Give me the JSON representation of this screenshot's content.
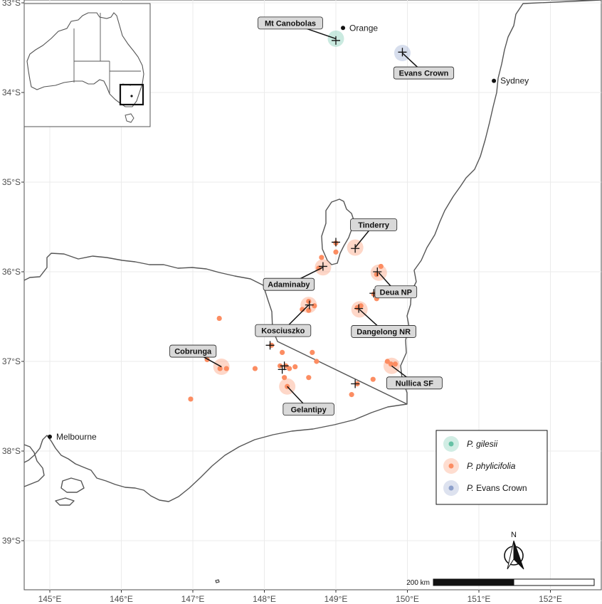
{
  "axes": {
    "lon_ticks": [
      {
        "value": 145,
        "label": "145°E"
      },
      {
        "value": 146,
        "label": "146°E"
      },
      {
        "value": 147,
        "label": "147°E"
      },
      {
        "value": 148,
        "label": "148°E"
      },
      {
        "value": 149,
        "label": "149°E"
      },
      {
        "value": 150,
        "label": "150°E"
      },
      {
        "value": 151,
        "label": "151°E"
      },
      {
        "value": 152,
        "label": "152°E"
      }
    ],
    "lat_ticks": [
      {
        "value": -33,
        "label": "33°S"
      },
      {
        "value": -34,
        "label": "34°S"
      },
      {
        "value": -35,
        "label": "35°S"
      },
      {
        "value": -36,
        "label": "36°S"
      },
      {
        "value": -37,
        "label": "37°S"
      },
      {
        "value": -38,
        "label": "38°S"
      },
      {
        "value": -39,
        "label": "39°S"
      }
    ]
  },
  "colors": {
    "gilesii": "#66c2a5",
    "phylicifolia": "#fc8d62",
    "evans_crown": "#8da0cb",
    "coast": "#555555",
    "grid": "#ebebeb"
  },
  "cities": [
    {
      "name": "Orange",
      "lon": 149.1,
      "lat": -33.28
    },
    {
      "name": "Sydney",
      "lon": 151.21,
      "lat": -33.87
    },
    {
      "name": "Melbourne",
      "lon": 145.0,
      "lat": -37.84
    }
  ],
  "sites": [
    {
      "label": "Mt Canobolas",
      "species": "gilesii",
      "lon": 149.0,
      "lat": -33.4
    },
    {
      "label": "Evans Crown",
      "species": "evans_crown",
      "lon": 149.93,
      "lat": -33.56
    },
    {
      "label": "Tinderry",
      "species": "phylicifolia",
      "lon": 149.27,
      "lat": -35.73
    },
    {
      "label": "Adaminaby",
      "species": "phylicifolia",
      "lon": 148.82,
      "lat": -35.95
    },
    {
      "label": "Deua NP",
      "species": "phylicifolia",
      "lon": 149.6,
      "lat": -36.01
    },
    {
      "label": "Kosciuszko",
      "species": "phylicifolia",
      "lon": 148.62,
      "lat": -36.37
    },
    {
      "label": "Dangelong NR",
      "species": "phylicifolia",
      "lon": 149.33,
      "lat": -36.42
    },
    {
      "label": "Cobrunga",
      "species": "phylicifolia",
      "lon": 147.4,
      "lat": -37.06
    },
    {
      "label": "Nullica SF",
      "species": "phylicifolia",
      "lon": 149.78,
      "lat": -37.05
    },
    {
      "label": "Gelantipy",
      "species": "phylicifolia",
      "lon": 148.32,
      "lat": -37.28
    }
  ],
  "occurrences": [
    [
      149.0,
      -35.68
    ],
    [
      149.0,
      -35.78
    ],
    [
      148.8,
      -35.84
    ],
    [
      148.76,
      -35.96
    ],
    [
      149.63,
      -35.94
    ],
    [
      149.57,
      -36.03
    ],
    [
      149.77,
      -36.2
    ],
    [
      149.53,
      -36.25
    ],
    [
      149.57,
      -36.3
    ],
    [
      148.53,
      -36.42
    ],
    [
      148.62,
      -36.33
    ],
    [
      148.7,
      -36.38
    ],
    [
      148.62,
      -36.43
    ],
    [
      149.35,
      -36.38
    ],
    [
      149.3,
      -36.4
    ],
    [
      147.37,
      -36.52
    ],
    [
      148.1,
      -36.82
    ],
    [
      148.25,
      -36.9
    ],
    [
      148.67,
      -36.9
    ],
    [
      148.62,
      -37.18
    ],
    [
      147.2,
      -36.98
    ],
    [
      147.38,
      -37.08
    ],
    [
      147.47,
      -37.08
    ],
    [
      147.87,
      -37.08
    ],
    [
      148.22,
      -37.05
    ],
    [
      148.3,
      -37.05
    ],
    [
      148.35,
      -37.08
    ],
    [
      148.43,
      -37.06
    ],
    [
      148.73,
      -37.0
    ],
    [
      148.28,
      -37.18
    ],
    [
      149.72,
      -37.0
    ],
    [
      149.77,
      -37.03
    ],
    [
      149.83,
      -37.03
    ],
    [
      149.52,
      -37.2
    ],
    [
      149.22,
      -37.37
    ],
    [
      148.32,
      -37.28
    ],
    [
      146.97,
      -37.42
    ],
    [
      149.3,
      -37.25
    ]
  ],
  "crosses": [
    [
      149.0,
      -33.42
    ],
    [
      149.93,
      -33.55
    ],
    [
      149.27,
      -35.74
    ],
    [
      149.0,
      -35.67
    ],
    [
      148.82,
      -35.94
    ],
    [
      149.58,
      -36.0
    ],
    [
      149.53,
      -36.24
    ],
    [
      148.63,
      -36.37
    ],
    [
      149.32,
      -36.41
    ],
    [
      148.08,
      -36.82
    ],
    [
      148.28,
      -37.05
    ],
    [
      148.25,
      -37.09
    ],
    [
      149.27,
      -37.25
    ]
  ],
  "legend": {
    "items": [
      {
        "key": "gilesii",
        "prefix": "",
        "name": "P. gilesii"
      },
      {
        "key": "phylicifolia",
        "prefix": "",
        "name": "P. phylicifolia"
      },
      {
        "key": "evans_crown",
        "prefix": "P.",
        "name": "Evans Crown"
      }
    ]
  },
  "scale_bar": {
    "label": "200 km"
  },
  "north_arrow": {
    "label": "N"
  }
}
